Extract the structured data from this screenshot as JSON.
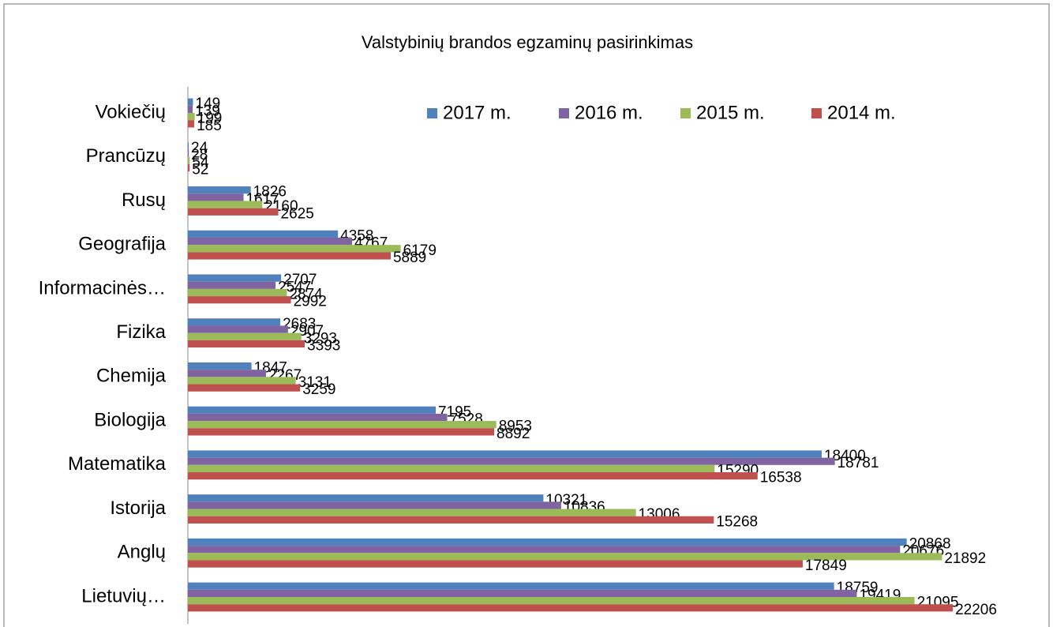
{
  "chart_data": {
    "type": "bar",
    "orientation": "horizontal",
    "title": "Valstybinių brandos egzaminų pasirinkimas",
    "categories": [
      "Vokiečių",
      "Prancūzų",
      "Rusų",
      "Geografija",
      "Informacinės…",
      "Fizika",
      "Chemija",
      "Biologija",
      "Matematika",
      "Istorija",
      "Anglų",
      "Lietuvių…"
    ],
    "series": [
      {
        "name": "2017 m.",
        "color": "#4f81bd",
        "values": [
          149,
          24,
          1826,
          4358,
          2707,
          2683,
          1847,
          7195,
          18400,
          10321,
          20868,
          18759
        ]
      },
      {
        "name": "2016 m.",
        "color": "#8064a2",
        "values": [
          139,
          28,
          1617,
          4767,
          2547,
          2907,
          2267,
          7528,
          18781,
          10836,
          20676,
          19419
        ]
      },
      {
        "name": "2015 m.",
        "color": "#9bbb59",
        "values": [
          199,
          54,
          2160,
          6179,
          2874,
          3293,
          3131,
          8953,
          15290,
          13006,
          21892,
          21095
        ]
      },
      {
        "name": "2014 m.",
        "color": "#c0504d",
        "values": [
          185,
          52,
          2625,
          5889,
          2992,
          3393,
          3259,
          8892,
          16538,
          15268,
          17849,
          22206
        ]
      }
    ],
    "xlim": [
      0,
      25000
    ],
    "legend": "top-right",
    "grid": false
  }
}
